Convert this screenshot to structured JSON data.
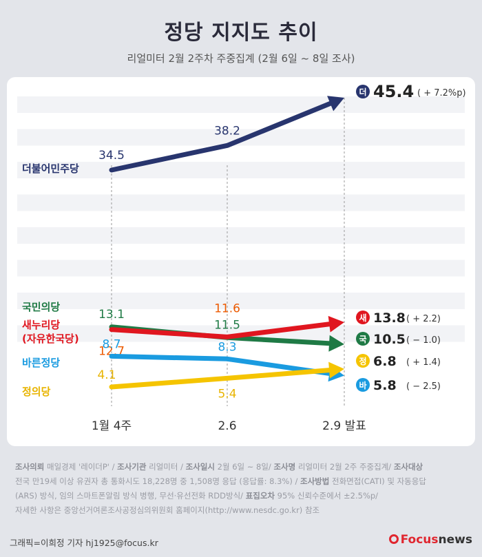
{
  "header": {
    "title": "정당 지지도 추이",
    "subtitle": "리얼미터 2월 2주차 주중집계 (2월 6일 ~ 8일 조사)"
  },
  "chart_data": {
    "type": "line",
    "title": "정당 지지도 추이",
    "subtitle": "리얼미터 2월 2주차 주중집계 (2월 6일 ~ 8일 조사)",
    "xlabel": "",
    "ylabel": "",
    "categories": [
      "1월 4주",
      "2.6",
      "2.9 발표"
    ],
    "series": [
      {
        "name": "더불어민주당",
        "abbr": "더",
        "values": [
          34.5,
          38.2,
          45.4
        ],
        "change": "( + 7.2%p)",
        "color": "#28356e"
      },
      {
        "name": "국민의당",
        "abbr": "국",
        "values": [
          13.1,
          11.5,
          10.5
        ],
        "change": "( − 1.0)",
        "color": "#1f7a45"
      },
      {
        "name": "새누리당\n(자유한국당)",
        "abbr": "새",
        "values": [
          12.7,
          11.6,
          13.8
        ],
        "change": "( + 2.2)",
        "color": "#e0161f"
      },
      {
        "name": "바른정당",
        "abbr": "바",
        "values": [
          8.7,
          8.3,
          5.8
        ],
        "change": "( − 2.5)",
        "color": "#1a9be0"
      },
      {
        "name": "정의당",
        "abbr": "정",
        "values": [
          4.1,
          5.4,
          6.8
        ],
        "change": "( + 1.4)",
        "color": "#f5c400"
      }
    ]
  },
  "footnote": {
    "line1_k1": "조사의뢰",
    "line1_v1": " 매일경제 '레이더P' / ",
    "line1_k2": "조사기관",
    "line1_v2": " 리얼미터 / ",
    "line1_k3": "조사일시",
    "line1_v3": " 2월 6일 ~ 8일/ ",
    "line1_k4": "조사명",
    "line1_v4": " 리얼미터 2월 2주 주중집계/ ",
    "line1_k5": "조사대상",
    "line2_v1": "전국 만19세 이상 유권자 총 통화시도 18,228명 중 1,508명 응답 (응답률: 8.3%) / ",
    "line2_k1": "조사방법",
    "line2_v2": " 전화면접(CATI) 및 자동응답",
    "line3_v1": "(ARS) 방식, 임의 스마트폰알림 방식 병행, 무선·유선전화 RDD방식/ ",
    "line3_k1": "표집오차",
    "line3_v2": " 95% 신뢰수준에서 ±2.5%p/",
    "line4": "자세한 사항은 중앙선거여론조사공정심의위원회 홈페이지(http://www.nesdc.go.kr) 참조"
  },
  "credit": "그래픽=이희정 기자 hj1925@focus.kr",
  "logo": {
    "f": "Focus",
    "rest": "news"
  }
}
